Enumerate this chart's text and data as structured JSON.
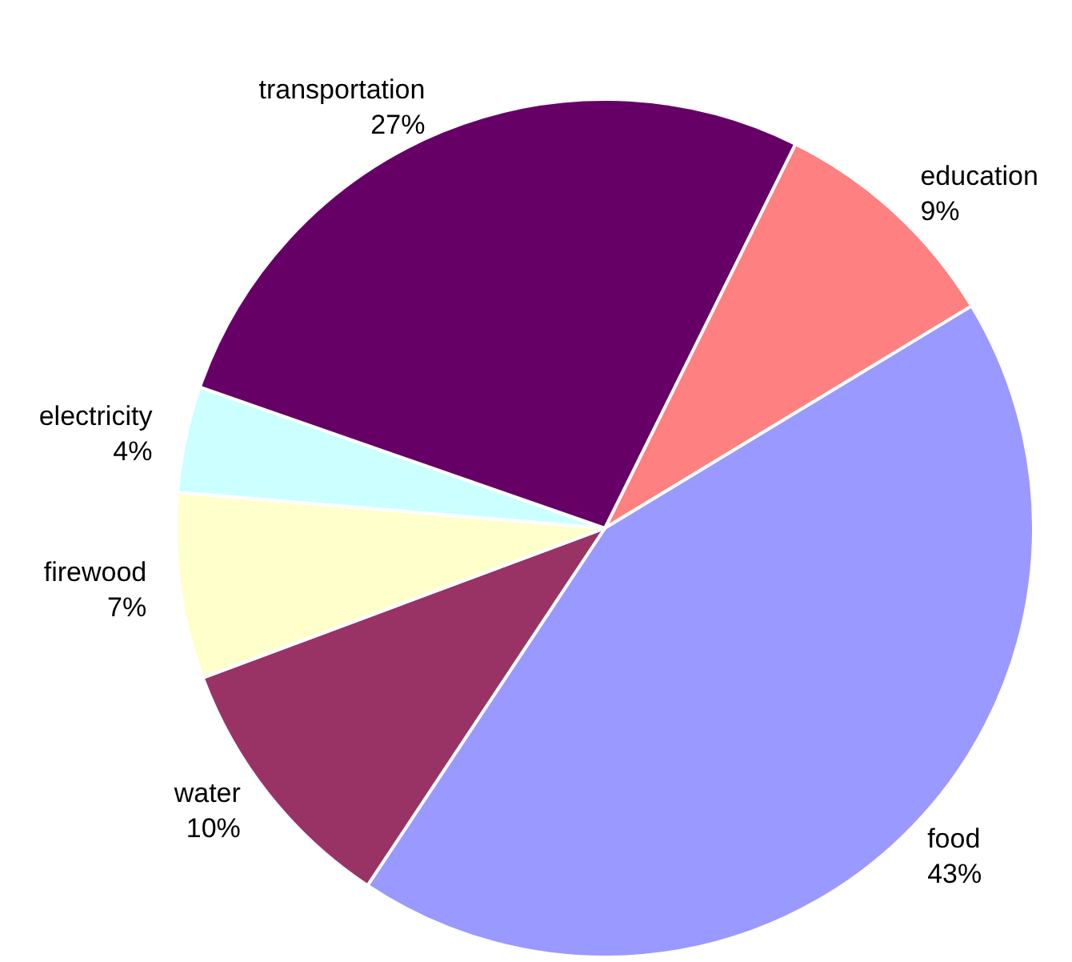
{
  "chart_data": {
    "type": "pie",
    "categories": [
      "education",
      "food",
      "water",
      "firewood",
      "electricity",
      "transportation"
    ],
    "values": [
      9,
      43,
      10,
      7,
      4,
      27
    ],
    "value_labels": [
      "9%",
      "43%",
      "10%",
      "7%",
      "4%",
      "27%"
    ],
    "colors": [
      "#ff8080",
      "#9999ff",
      "#993366",
      "#ffffcc",
      "#ccffff",
      "#660066"
    ],
    "legend": false
  }
}
